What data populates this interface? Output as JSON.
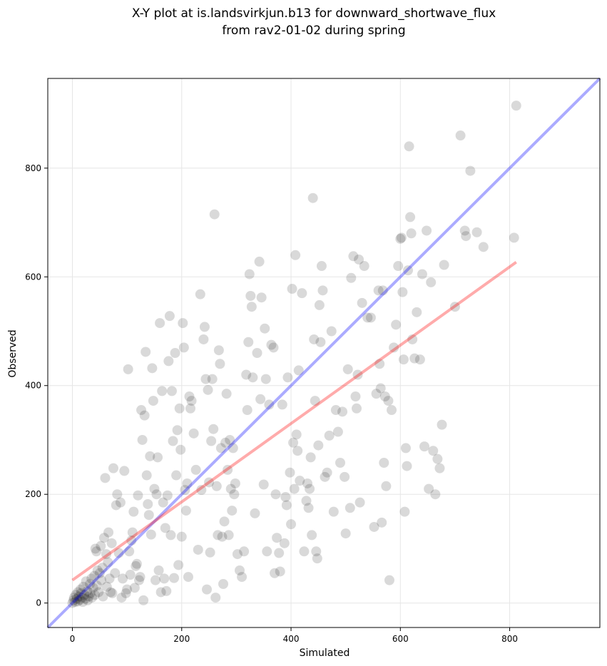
{
  "chart_data": {
    "type": "scatter",
    "title_lines": [
      "X-Y plot at is.landsvirkjun.b13 for downward_shortwave_flux",
      "from rav2-01-02 during spring"
    ],
    "xlabel": "Simulated",
    "ylabel": "Observed",
    "xlim": [
      -45,
      965
    ],
    "ylim": [
      -45,
      965
    ],
    "xticks": [
      0,
      200,
      400,
      600,
      800
    ],
    "yticks": [
      0,
      200,
      400,
      600,
      800
    ],
    "grid": true,
    "colors": {
      "points": "#000000",
      "one_to_one_line": "#0000ff",
      "fit_line": "#ff0000",
      "grid": "#e6e6e6"
    },
    "one_to_one_line": {
      "x": [
        -45,
        965
      ],
      "y": [
        -45,
        965
      ]
    },
    "fit_line": {
      "x": [
        0,
        812
      ],
      "y": [
        42,
        627
      ]
    },
    "points": [
      [
        0,
        0
      ],
      [
        2,
        5
      ],
      [
        3,
        10
      ],
      [
        5,
        2
      ],
      [
        6,
        15
      ],
      [
        8,
        8
      ],
      [
        10,
        20
      ],
      [
        10,
        3
      ],
      [
        12,
        12
      ],
      [
        14,
        6
      ],
      [
        15,
        25
      ],
      [
        16,
        18
      ],
      [
        18,
        10
      ],
      [
        19,
        2
      ],
      [
        20,
        30
      ],
      [
        22,
        15
      ],
      [
        24,
        8
      ],
      [
        25,
        40
      ],
      [
        27,
        22
      ],
      [
        28,
        5
      ],
      [
        30,
        12
      ],
      [
        32,
        35
      ],
      [
        33,
        18
      ],
      [
        35,
        45
      ],
      [
        36,
        10
      ],
      [
        38,
        28
      ],
      [
        40,
        50
      ],
      [
        41,
        15
      ],
      [
        42,
        100
      ],
      [
        44,
        95
      ],
      [
        45,
        32
      ],
      [
        46,
        60
      ],
      [
        48,
        20
      ],
      [
        50,
        55
      ],
      [
        52,
        105
      ],
      [
        53,
        42
      ],
      [
        55,
        65
      ],
      [
        56,
        12
      ],
      [
        58,
        120
      ],
      [
        60,
        230
      ],
      [
        62,
        90
      ],
      [
        63,
        30
      ],
      [
        65,
        75
      ],
      [
        66,
        130
      ],
      [
        68,
        45
      ],
      [
        70,
        20
      ],
      [
        72,
        110
      ],
      [
        73,
        18
      ],
      [
        75,
        248
      ],
      [
        78,
        55
      ],
      [
        80,
        180
      ],
      [
        82,
        200
      ],
      [
        85,
        92
      ],
      [
        88,
        185
      ],
      [
        90,
        10
      ],
      [
        92,
        45
      ],
      [
        95,
        243
      ],
      [
        98,
        18
      ],
      [
        100,
        25
      ],
      [
        102,
        430
      ],
      [
        104,
        95
      ],
      [
        106,
        52
      ],
      [
        108,
        115
      ],
      [
        110,
        130
      ],
      [
        112,
        168
      ],
      [
        114,
        28
      ],
      [
        116,
        68
      ],
      [
        118,
        72
      ],
      [
        120,
        198
      ],
      [
        122,
        42
      ],
      [
        124,
        48
      ],
      [
        126,
        355
      ],
      [
        128,
        300
      ],
      [
        130,
        5
      ],
      [
        132,
        345
      ],
      [
        134,
        462
      ],
      [
        136,
        235
      ],
      [
        138,
        182
      ],
      [
        140,
        162
      ],
      [
        142,
        270
      ],
      [
        144,
        126
      ],
      [
        146,
        432
      ],
      [
        148,
        372
      ],
      [
        150,
        210
      ],
      [
        152,
        42
      ],
      [
        154,
        200
      ],
      [
        156,
        268
      ],
      [
        158,
        60
      ],
      [
        160,
        515
      ],
      [
        162,
        20
      ],
      [
        164,
        390
      ],
      [
        166,
        185
      ],
      [
        168,
        45
      ],
      [
        170,
        138
      ],
      [
        172,
        22
      ],
      [
        174,
        198
      ],
      [
        176,
        445
      ],
      [
        178,
        528
      ],
      [
        180,
        125
      ],
      [
        182,
        390
      ],
      [
        184,
        298
      ],
      [
        186,
        46
      ],
      [
        188,
        460
      ],
      [
        190,
        235
      ],
      [
        192,
        318
      ],
      [
        194,
        70
      ],
      [
        196,
        358
      ],
      [
        198,
        282
      ],
      [
        200,
        122
      ],
      [
        202,
        515
      ],
      [
        204,
        470
      ],
      [
        206,
        208
      ],
      [
        208,
        170
      ],
      [
        210,
        220
      ],
      [
        212,
        48
      ],
      [
        214,
        380
      ],
      [
        216,
        358
      ],
      [
        218,
        372
      ],
      [
        222,
        312
      ],
      [
        226,
        245
      ],
      [
        230,
        98
      ],
      [
        234,
        568
      ],
      [
        236,
        208
      ],
      [
        240,
        485
      ],
      [
        242,
        508
      ],
      [
        244,
        412
      ],
      [
        246,
        25
      ],
      [
        248,
        392
      ],
      [
        250,
        222
      ],
      [
        252,
        93
      ],
      [
        254,
        298
      ],
      [
        256,
        412
      ],
      [
        258,
        320
      ],
      [
        260,
        715
      ],
      [
        262,
        10
      ],
      [
        264,
        215
      ],
      [
        266,
        125
      ],
      [
        268,
        465
      ],
      [
        270,
        440
      ],
      [
        272,
        285
      ],
      [
        274,
        122
      ],
      [
        276,
        35
      ],
      [
        278,
        150
      ],
      [
        280,
        295
      ],
      [
        282,
        385
      ],
      [
        284,
        245
      ],
      [
        286,
        125
      ],
      [
        288,
        300
      ],
      [
        290,
        210
      ],
      [
        292,
        170
      ],
      [
        294,
        285
      ],
      [
        296,
        200
      ],
      [
        298,
        220
      ],
      [
        302,
        90
      ],
      [
        306,
        60
      ],
      [
        310,
        48
      ],
      [
        314,
        95
      ],
      [
        318,
        420
      ],
      [
        320,
        355
      ],
      [
        322,
        480
      ],
      [
        324,
        605
      ],
      [
        326,
        565
      ],
      [
        328,
        545
      ],
      [
        330,
        415
      ],
      [
        334,
        165
      ],
      [
        338,
        460
      ],
      [
        342,
        628
      ],
      [
        344,
        375
      ],
      [
        346,
        562
      ],
      [
        350,
        218
      ],
      [
        352,
        505
      ],
      [
        354,
        412
      ],
      [
        356,
        95
      ],
      [
        360,
        365
      ],
      [
        364,
        475
      ],
      [
        368,
        470
      ],
      [
        370,
        55
      ],
      [
        372,
        200
      ],
      [
        374,
        120
      ],
      [
        378,
        92
      ],
      [
        380,
        58
      ],
      [
        384,
        365
      ],
      [
        388,
        110
      ],
      [
        390,
        195
      ],
      [
        392,
        180
      ],
      [
        394,
        415
      ],
      [
        398,
        240
      ],
      [
        400,
        145
      ],
      [
        402,
        578
      ],
      [
        404,
        295
      ],
      [
        406,
        210
      ],
      [
        408,
        640
      ],
      [
        410,
        310
      ],
      [
        412,
        280
      ],
      [
        414,
        428
      ],
      [
        416,
        225
      ],
      [
        420,
        570
      ],
      [
        424,
        95
      ],
      [
        428,
        188
      ],
      [
        430,
        220
      ],
      [
        432,
        175
      ],
      [
        434,
        210
      ],
      [
        436,
        268
      ],
      [
        438,
        125
      ],
      [
        440,
        745
      ],
      [
        442,
        485
      ],
      [
        444,
        372
      ],
      [
        446,
        95
      ],
      [
        448,
        82
      ],
      [
        450,
        290
      ],
      [
        452,
        548
      ],
      [
        454,
        480
      ],
      [
        456,
        620
      ],
      [
        458,
        575
      ],
      [
        462,
        232
      ],
      [
        466,
        240
      ],
      [
        470,
        308
      ],
      [
        474,
        500
      ],
      [
        478,
        168
      ],
      [
        482,
        355
      ],
      [
        486,
        315
      ],
      [
        490,
        258
      ],
      [
        494,
        352
      ],
      [
        498,
        232
      ],
      [
        500,
        128
      ],
      [
        504,
        430
      ],
      [
        508,
        175
      ],
      [
        510,
        598
      ],
      [
        514,
        638
      ],
      [
        518,
        380
      ],
      [
        520,
        358
      ],
      [
        522,
        420
      ],
      [
        524,
        632
      ],
      [
        526,
        185
      ],
      [
        530,
        552
      ],
      [
        534,
        620
      ],
      [
        540,
        525
      ],
      [
        546,
        525
      ],
      [
        552,
        140
      ],
      [
        556,
        385
      ],
      [
        560,
        575
      ],
      [
        562,
        440
      ],
      [
        564,
        395
      ],
      [
        566,
        148
      ],
      [
        568,
        575
      ],
      [
        570,
        258
      ],
      [
        572,
        380
      ],
      [
        574,
        215
      ],
      [
        578,
        372
      ],
      [
        580,
        42
      ],
      [
        584,
        355
      ],
      [
        588,
        470
      ],
      [
        592,
        512
      ],
      [
        596,
        620
      ],
      [
        600,
        670
      ],
      [
        602,
        672
      ],
      [
        604,
        572
      ],
      [
        606,
        448
      ],
      [
        608,
        168
      ],
      [
        610,
        285
      ],
      [
        612,
        252
      ],
      [
        614,
        612
      ],
      [
        616,
        840
      ],
      [
        618,
        710
      ],
      [
        620,
        680
      ],
      [
        622,
        485
      ],
      [
        626,
        450
      ],
      [
        630,
        535
      ],
      [
        636,
        448
      ],
      [
        640,
        605
      ],
      [
        644,
        288
      ],
      [
        648,
        685
      ],
      [
        652,
        210
      ],
      [
        656,
        590
      ],
      [
        660,
        280
      ],
      [
        664,
        200
      ],
      [
        668,
        265
      ],
      [
        672,
        248
      ],
      [
        676,
        328
      ],
      [
        680,
        622
      ],
      [
        700,
        545
      ],
      [
        710,
        860
      ],
      [
        718,
        685
      ],
      [
        720,
        675
      ],
      [
        728,
        795
      ],
      [
        740,
        682
      ],
      [
        752,
        655
      ],
      [
        808,
        672
      ],
      [
        812,
        915
      ]
    ]
  }
}
